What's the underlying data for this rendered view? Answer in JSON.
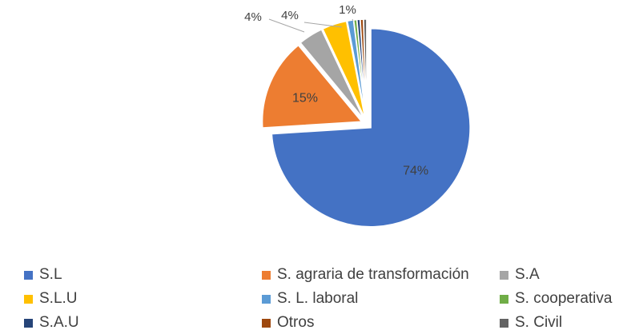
{
  "chart_data": {
    "type": "pie",
    "title": "",
    "categories": [
      "S.L",
      "S. agraria de transformación",
      "S.A",
      "S.L.U",
      "S. L. laboral",
      "S. cooperativa",
      "S.A.U",
      "Otros",
      "S. Civil"
    ],
    "values": [
      74,
      15,
      4,
      4,
      1,
      0.5,
      0.5,
      0.5,
      0.5
    ],
    "data_labels": [
      "74%",
      "15%",
      "4%",
      "4%",
      "1%",
      "",
      "",
      "",
      ""
    ],
    "colors": [
      "#4472C4",
      "#ED7D31",
      "#A5A5A5",
      "#FFC000",
      "#5B9BD5",
      "#70AD47",
      "#264478",
      "#9E480E",
      "#636363"
    ],
    "exploded": true,
    "legend_position": "bottom"
  }
}
